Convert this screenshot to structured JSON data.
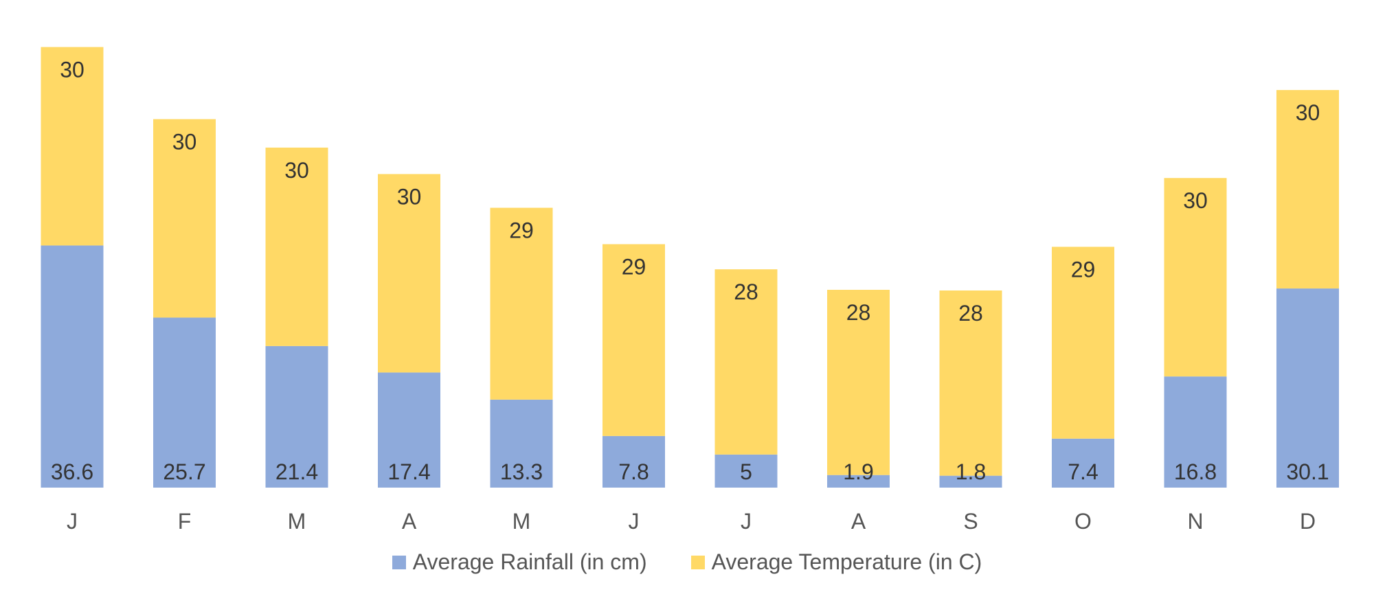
{
  "chart_data": {
    "type": "bar",
    "stacked": true,
    "title": "",
    "xlabel": "",
    "ylabel": "",
    "categories": [
      "J",
      "F",
      "M",
      "A",
      "M",
      "J",
      "J",
      "A",
      "S",
      "O",
      "N",
      "D"
    ],
    "series": [
      {
        "name": "Average Rainfall (in cm)",
        "color": "#8eaadb",
        "values": [
          36.6,
          25.7,
          21.4,
          17.4,
          13.3,
          7.8,
          5,
          1.9,
          1.8,
          7.4,
          16.8,
          30.1
        ]
      },
      {
        "name": "Average Temperature (in C)",
        "color": "#ffd966",
        "values": [
          30,
          30,
          30,
          30,
          29,
          29,
          28,
          28,
          28,
          29,
          30,
          30
        ]
      }
    ],
    "ylim": [
      0,
      68
    ],
    "grid": false,
    "legend_position": "bottom-center"
  }
}
